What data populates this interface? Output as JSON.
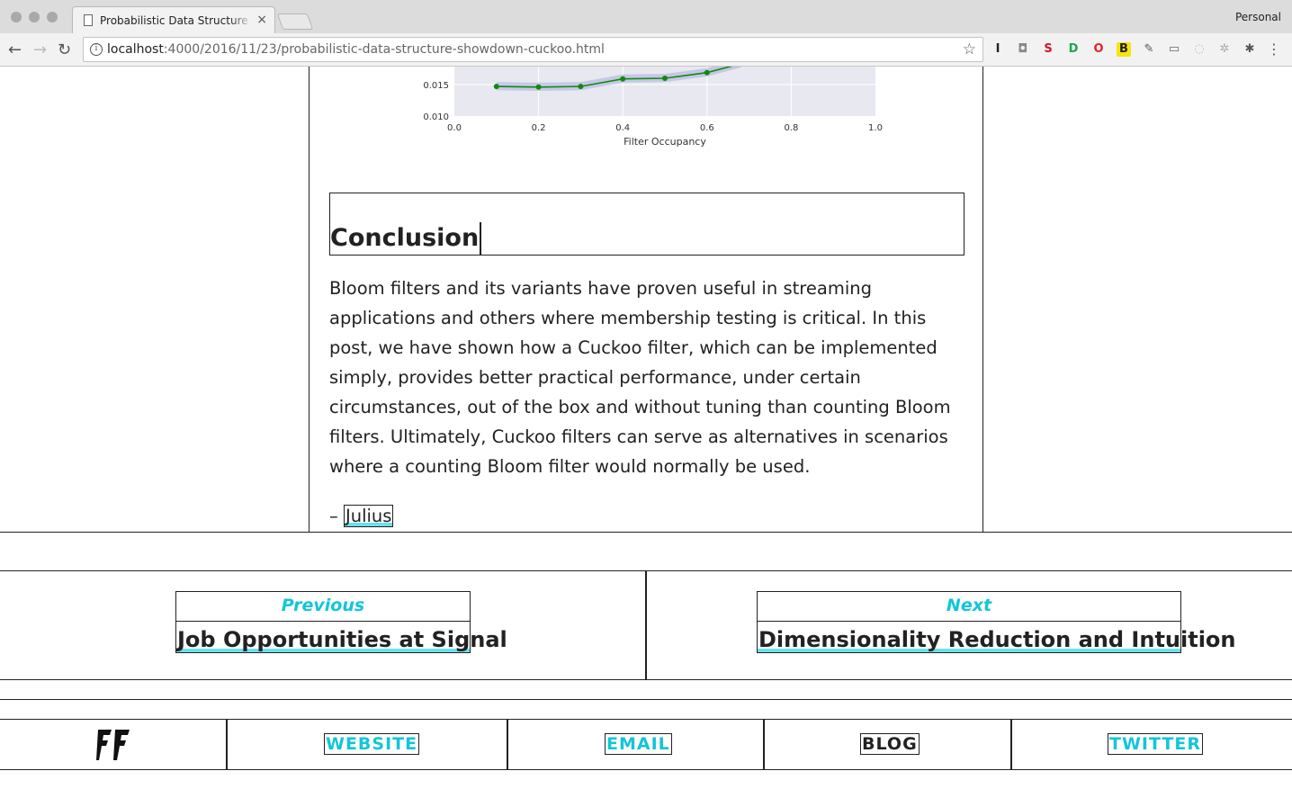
{
  "browser": {
    "tab_title": "Probabilistic Data Structure Showdown: Cuckoo",
    "tab_close": "×",
    "profile": "Personal",
    "url_host": "localhost",
    "url_path": ":4000/2016/11/23/probabilistic-data-structure-showdown-cuckoo.html",
    "nav": {
      "back": "←",
      "forward": "→",
      "reload": "↻"
    },
    "star": "☆",
    "menu": "⋮",
    "extensions": [
      {
        "name": "instapaper-icon",
        "glyph": "I",
        "color": "#222222"
      },
      {
        "name": "camera-icon",
        "glyph": "◘",
        "color": "#8a8a8a"
      },
      {
        "name": "s-extension-icon",
        "glyph": "S",
        "color": "#d0182d"
      },
      {
        "name": "d-extension-icon",
        "glyph": "D",
        "color": "#1ea54c"
      },
      {
        "name": "opera-icon",
        "glyph": "O",
        "color": "#e2232a"
      },
      {
        "name": "b-extension-icon",
        "glyph": "B",
        "color": "#222222"
      },
      {
        "name": "eyedropper-icon",
        "glyph": "✎",
        "color": "#555555"
      },
      {
        "name": "cast-icon",
        "glyph": "▭",
        "color": "#666666"
      },
      {
        "name": "circle-extension-icon",
        "glyph": "◌",
        "color": "#bbbbbb"
      },
      {
        "name": "gear-extension-icon",
        "glyph": "✲",
        "color": "#aaaaaa"
      },
      {
        "name": "bug-icon",
        "glyph": "✱",
        "color": "#555555"
      }
    ]
  },
  "chart_data": {
    "type": "line",
    "xlabel": "Filter Occupancy",
    "ylabel": "",
    "xlim": [
      0.0,
      1.0
    ],
    "y_ticks_visible": [
      "0.015",
      "0.010"
    ],
    "x_ticks": [
      "0.0",
      "0.2",
      "0.4",
      "0.6",
      "0.8",
      "1.0"
    ],
    "grid": true,
    "series": [
      {
        "color": "#118811",
        "x": [
          0.1,
          0.2,
          0.3,
          0.4,
          0.5,
          0.6,
          0.68
        ],
        "y": [
          0.0147,
          0.0146,
          0.0147,
          0.0159,
          0.016,
          0.0169,
          0.0183
        ]
      }
    ],
    "band_color": "#b7bbe0"
  },
  "article": {
    "heading": "Conclusion",
    "paragraph": "Bloom filters and its variants have proven useful in streaming applications and others where membership testing is critical. In this post, we have shown how a Cuckoo filter, which can be implemented simply, provides better practical performance, under certain circumstances, out of the box and without tuning than counting Bloom filters. Ultimately, Cuckoo filters can serve as alternatives in scenarios where a counting Bloom filter would normally be used.",
    "signoff_dash": "– ",
    "author": "Julius"
  },
  "pager": {
    "previous_label": "Previous",
    "previous_title": "Job Opportunities at Signal",
    "next_label": "Next",
    "next_title": "Dimensionality Reduction and Intuition"
  },
  "footer": {
    "website": "WEBSITE",
    "email": "EMAIL",
    "blog": "BLOG",
    "twitter": "TWITTER",
    "accent": "#12c6d8"
  }
}
